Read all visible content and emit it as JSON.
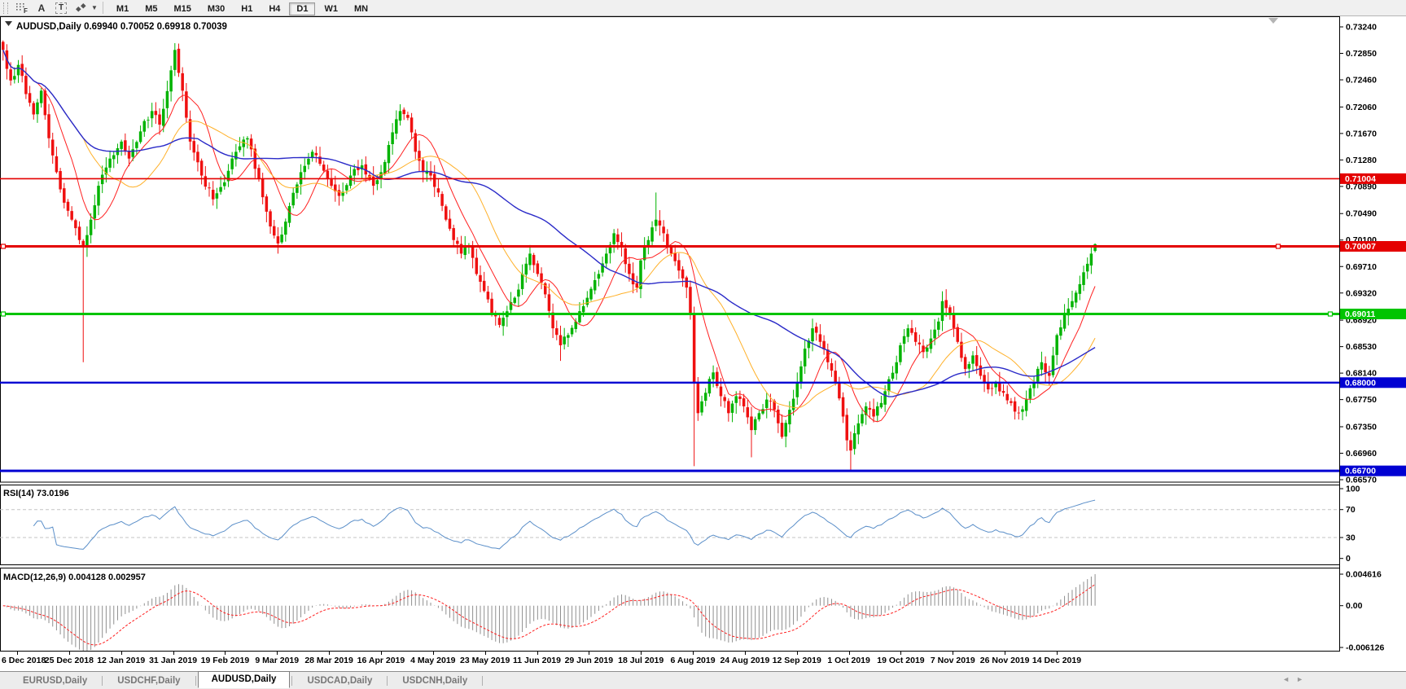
{
  "toolbar": {
    "tools": [
      {
        "name": "grid-periods-tool",
        "label": "F"
      },
      {
        "name": "font-tool",
        "label": "A"
      },
      {
        "name": "text-label-tool",
        "label": "T"
      },
      {
        "name": "cursor-tool",
        "label": ""
      }
    ],
    "timeframes": [
      "M1",
      "M5",
      "M15",
      "M30",
      "H1",
      "H4",
      "D1",
      "W1",
      "MN"
    ],
    "active_timeframe": "D1"
  },
  "chart_header": {
    "symbol": "AUDUSD,Daily",
    "open": "0.69940",
    "high": "0.70052",
    "low": "0.69918",
    "close": "0.70039",
    "title_full": "AUDUSD,Daily  0.69940 0.70052 0.69918 0.70039"
  },
  "indicators": {
    "rsi": {
      "name": "RSI(14)",
      "value": "73.0196",
      "label_full": "RSI(14) 73.0196",
      "levels": [
        "100",
        "70",
        "30",
        "0"
      ],
      "level_values": [
        100,
        70,
        30,
        0
      ],
      "dashed_levels": [
        70,
        30
      ],
      "line_color": "#5b8fc9"
    },
    "macd": {
      "name": "MACD(12,26,9)",
      "value": "0.004128",
      "signal_value": "0.002957",
      "label_full": "MACD(12,26,9) 0.004128 0.002957",
      "axis_labels": [
        "0.004616",
        "0.00",
        "-0.006126"
      ],
      "histogram_color": "#8f8f8f",
      "signal_color": "#ff2020"
    }
  },
  "hlines": [
    {
      "price": 0.71004,
      "label": "0.71004",
      "color": "#e40000",
      "thickness": 1.6,
      "anchors": []
    },
    {
      "price": 0.70007,
      "label": "0.70007",
      "color": "#e40000",
      "thickness": 3.0,
      "anchors": [
        4,
        1570
      ]
    },
    {
      "price": 0.69011,
      "label": "0.69011",
      "color": "#00c400",
      "thickness": 3.0,
      "anchors": [
        4,
        1634
      ]
    },
    {
      "price": 0.68,
      "label": "0.68000",
      "color": "#0000d2",
      "thickness": 2.4,
      "anchors": []
    },
    {
      "price": 0.667,
      "label": "0.66700",
      "color": "#0000d2",
      "thickness": 3.0,
      "anchors": []
    }
  ],
  "chart_data": {
    "type": "candlestick",
    "symbol": "AUDUSD",
    "timeframe": "Daily",
    "bars": 287,
    "price_range": [
      0.6657,
      0.7324
    ],
    "price_ticks": [
      "0.73240",
      "0.72850",
      "0.72460",
      "0.72060",
      "0.71670",
      "0.71280",
      "0.70890",
      "0.70490",
      "0.70100",
      "0.69710",
      "0.69320",
      "0.68920",
      "0.68530",
      "0.68140",
      "0.67750",
      "0.67350",
      "0.66960",
      "0.66570"
    ],
    "dates": [
      "6 Dec 2018",
      "25 Dec 2018",
      "12 Jan 2019",
      "31 Jan 2019",
      "19 Feb 2019",
      "9 Mar 2019",
      "28 Mar 2019",
      "16 Apr 2019",
      "4 May 2019",
      "23 May 2019",
      "11 Jun 2019",
      "29 Jun 2019",
      "18 Jul 2019",
      "6 Aug 2019",
      "24 Aug 2019",
      "12 Sep 2019",
      "1 Oct 2019",
      "19 Oct 2019",
      "7 Nov 2019",
      "26 Nov 2019",
      "14 Dec 2019"
    ],
    "up_color": "#00b300",
    "down_color": "#ef1010",
    "moving_averages": [
      {
        "period": 10,
        "color": "#ff2020",
        "width": 1.0
      },
      {
        "period": 22,
        "color": "#ffb028",
        "width": 1.0
      },
      {
        "period": 52,
        "color": "#2a2ac8",
        "width": 1.4
      }
    ],
    "close_anchors": [
      [
        0,
        0.729
      ],
      [
        2,
        0.7245
      ],
      [
        4,
        0.7268
      ],
      [
        6,
        0.7225
      ],
      [
        8,
        0.7195
      ],
      [
        10,
        0.723
      ],
      [
        12,
        0.716
      ],
      [
        14,
        0.711
      ],
      [
        16,
        0.7065
      ],
      [
        18,
        0.704
      ],
      [
        20,
        0.701
      ],
      [
        21,
        0.7
      ],
      [
        23,
        0.704
      ],
      [
        25,
        0.709
      ],
      [
        28,
        0.713
      ],
      [
        31,
        0.7155
      ],
      [
        33,
        0.713
      ],
      [
        36,
        0.717
      ],
      [
        39,
        0.72
      ],
      [
        41,
        0.718
      ],
      [
        44,
        0.726
      ],
      [
        45,
        0.729
      ],
      [
        47,
        0.723
      ],
      [
        49,
        0.7155
      ],
      [
        52,
        0.7105
      ],
      [
        55,
        0.707
      ],
      [
        58,
        0.7095
      ],
      [
        61,
        0.714
      ],
      [
        64,
        0.716
      ],
      [
        67,
        0.71
      ],
      [
        70,
        0.703
      ],
      [
        72,
        0.7005
      ],
      [
        75,
        0.706
      ],
      [
        78,
        0.711
      ],
      [
        81,
        0.714
      ],
      [
        85,
        0.71
      ],
      [
        88,
        0.7075
      ],
      [
        91,
        0.7105
      ],
      [
        94,
        0.712
      ],
      [
        97,
        0.709
      ],
      [
        99,
        0.711
      ],
      [
        101,
        0.715
      ],
      [
        104,
        0.72
      ],
      [
        106,
        0.719
      ],
      [
        108,
        0.714
      ],
      [
        110,
        0.711
      ],
      [
        112,
        0.7105
      ],
      [
        114,
        0.708
      ],
      [
        116,
        0.704
      ],
      [
        118,
        0.701
      ],
      [
        120,
        0.699
      ],
      [
        122,
        0.7
      ],
      [
        124,
        0.696
      ],
      [
        126,
        0.6935
      ],
      [
        128,
        0.69
      ],
      [
        130,
        0.6885
      ],
      [
        132,
        0.6905
      ],
      [
        134,
        0.6925
      ],
      [
        136,
        0.696
      ],
      [
        138,
        0.699
      ],
      [
        140,
        0.696
      ],
      [
        142,
        0.693
      ],
      [
        144,
        0.688
      ],
      [
        146,
        0.6855
      ],
      [
        148,
        0.687
      ],
      [
        150,
        0.689
      ],
      [
        153,
        0.6925
      ],
      [
        156,
        0.696
      ],
      [
        158,
        0.699
      ],
      [
        160,
        0.702
      ],
      [
        162,
        0.7
      ],
      [
        164,
        0.696
      ],
      [
        166,
        0.694
      ],
      [
        167,
        0.698
      ],
      [
        169,
        0.701
      ],
      [
        171,
        0.704
      ],
      [
        173,
        0.702
      ],
      [
        175,
        0.699
      ],
      [
        177,
        0.6965
      ],
      [
        179,
        0.694
      ],
      [
        180,
        0.69
      ],
      [
        181,
        0.68
      ],
      [
        182,
        0.6755
      ],
      [
        184,
        0.6785
      ],
      [
        186,
        0.6815
      ],
      [
        188,
        0.678
      ],
      [
        190,
        0.6755
      ],
      [
        192,
        0.678
      ],
      [
        194,
        0.6765
      ],
      [
        196,
        0.673
      ],
      [
        198,
        0.6755
      ],
      [
        200,
        0.6775
      ],
      [
        202,
        0.676
      ],
      [
        204,
        0.672
      ],
      [
        206,
        0.676
      ],
      [
        208,
        0.68
      ],
      [
        210,
        0.685
      ],
      [
        212,
        0.688
      ],
      [
        214,
        0.686
      ],
      [
        216,
        0.683
      ],
      [
        218,
        0.68
      ],
      [
        220,
        0.675
      ],
      [
        221,
        0.6715
      ],
      [
        222,
        0.67
      ],
      [
        224,
        0.674
      ],
      [
        226,
        0.6765
      ],
      [
        228,
        0.675
      ],
      [
        230,
        0.677
      ],
      [
        232,
        0.6805
      ],
      [
        234,
        0.683
      ],
      [
        235,
        0.6855
      ],
      [
        237,
        0.688
      ],
      [
        239,
        0.686
      ],
      [
        241,
        0.6845
      ],
      [
        243,
        0.6865
      ],
      [
        245,
        0.689
      ],
      [
        246,
        0.692
      ],
      [
        248,
        0.69
      ],
      [
        250,
        0.686
      ],
      [
        252,
        0.682
      ],
      [
        254,
        0.684
      ],
      [
        256,
        0.681
      ],
      [
        258,
        0.679
      ],
      [
        260,
        0.68
      ],
      [
        262,
        0.6785
      ],
      [
        264,
        0.677
      ],
      [
        266,
        0.6755
      ],
      [
        268,
        0.6775
      ],
      [
        270,
        0.68
      ],
      [
        272,
        0.683
      ],
      [
        274,
        0.681
      ],
      [
        275,
        0.684
      ],
      [
        276,
        0.687
      ],
      [
        278,
        0.69
      ],
      [
        280,
        0.692
      ],
      [
        282,
        0.6945
      ],
      [
        284,
        0.6975
      ],
      [
        285,
        0.699
      ],
      [
        286,
        0.70039
      ]
    ],
    "wick_lows": {
      "21": 0.683,
      "146": 0.6832,
      "181": 0.6677,
      "196": 0.669,
      "222": 0.6671
    },
    "wick_highs": {
      "45": 0.73,
      "104": 0.721,
      "171": 0.708,
      "286": 0.70052
    },
    "last_bar": {
      "open": 0.6994,
      "high": 0.70052,
      "low": 0.69918,
      "close": 0.70039
    }
  },
  "tabs": {
    "items": [
      "EURUSD,Daily",
      "USDCHF,Daily",
      "AUDUSD,Daily",
      "USDCAD,Daily",
      "USDCNH,Daily"
    ],
    "active": "AUDUSD,Daily"
  },
  "nav": {
    "scroll_left": "◄",
    "scroll_right": "►"
  }
}
